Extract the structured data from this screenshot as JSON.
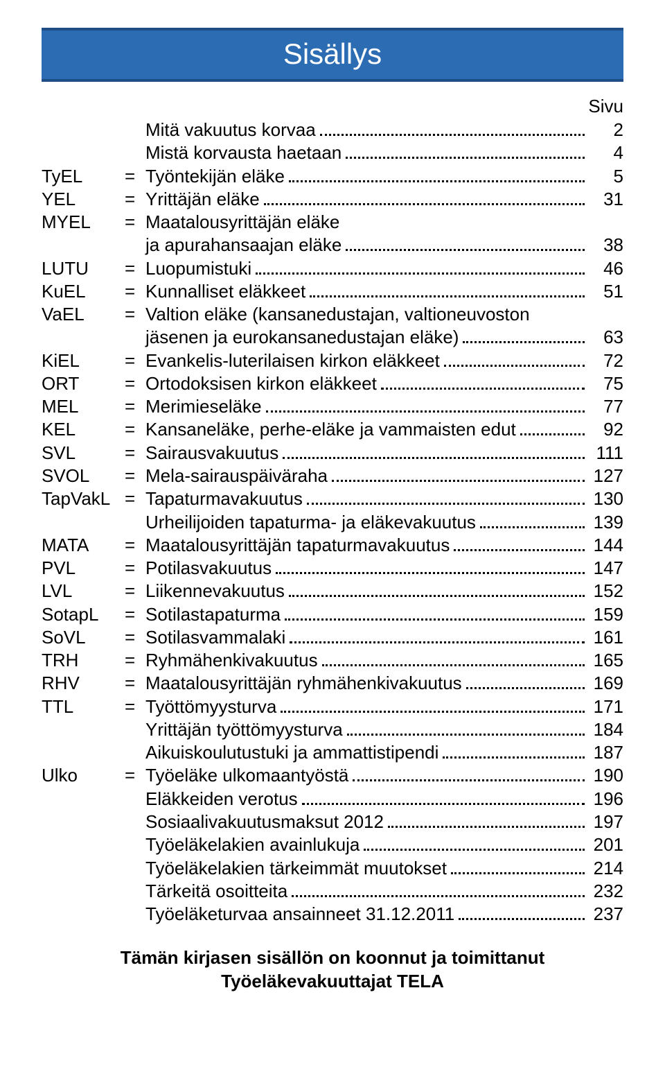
{
  "title": "Sisällys",
  "page_label": "Sivu",
  "colors": {
    "bar_bg": "#2b6cb3",
    "bar_border": "#1f4e87",
    "text": "#000000",
    "bg": "#ffffff"
  },
  "typography": {
    "title_fontsize": 42,
    "body_fontsize": 26,
    "footer_fontsize": 26
  },
  "entries": [
    {
      "abbr": "",
      "eq": "",
      "desc": "Mitä vakuutus korvaa",
      "page": "2"
    },
    {
      "abbr": "",
      "eq": "",
      "desc": "Mistä korvausta haetaan",
      "page": "4"
    },
    {
      "abbr": "TyEL",
      "eq": "=",
      "desc": "Työntekijän eläke",
      "page": "5"
    },
    {
      "abbr": "YEL",
      "eq": "=",
      "desc": "Yrittäjän eläke",
      "page": "31"
    },
    {
      "abbr": "MYEL",
      "eq": "=",
      "desc": "Maatalousyrittäjän eläke",
      "page": ""
    },
    {
      "abbr": "",
      "eq": "",
      "desc": "ja apurahansaajan eläke",
      "page": "38"
    },
    {
      "abbr": "LUTU",
      "eq": "=",
      "desc": "Luopumistuki",
      "page": "46"
    },
    {
      "abbr": "KuEL",
      "eq": "=",
      "desc": "Kunnalliset eläkkeet",
      "page": "51"
    },
    {
      "abbr": "VaEL",
      "eq": "=",
      "desc": "Valtion eläke (kansanedustajan, valtioneuvoston",
      "page": ""
    },
    {
      "abbr": "",
      "eq": "",
      "desc": "jäsenen ja eurokansanedustajan eläke)",
      "page": "63"
    },
    {
      "abbr": "KiEL",
      "eq": "=",
      "desc": "Evankelis-luterilaisen kirkon eläkkeet",
      "page": "72"
    },
    {
      "abbr": "ORT",
      "eq": "=",
      "desc": "Ortodoksisen kirkon eläkkeet",
      "page": "75"
    },
    {
      "abbr": "MEL",
      "eq": "=",
      "desc": "Merimieseläke",
      "page": "77"
    },
    {
      "abbr": "KEL",
      "eq": "=",
      "desc": "Kansaneläke, perhe-eläke ja vammaisten edut",
      "page": "92"
    },
    {
      "abbr": "SVL",
      "eq": "=",
      "desc": "Sairausvakuutus",
      "page": "111"
    },
    {
      "abbr": "SVOL",
      "eq": "=",
      "desc": "Mela-sairauspäiväraha",
      "page": "127"
    },
    {
      "abbr": "TapVakL",
      "eq": "=",
      "desc": "Tapaturmavakuutus",
      "page": "130"
    },
    {
      "abbr": "",
      "eq": "",
      "desc": "Urheilijoiden tapaturma- ja eläkevakuutus",
      "page": "139"
    },
    {
      "abbr": "MATA",
      "eq": "=",
      "desc": "Maatalousyrittäjän tapaturmavakuutus",
      "page": "144"
    },
    {
      "abbr": "PVL",
      "eq": "=",
      "desc": "Potilasvakuutus",
      "page": "147"
    },
    {
      "abbr": "LVL",
      "eq": "=",
      "desc": "Liikennevakuutus",
      "page": "152"
    },
    {
      "abbr": "SotapL",
      "eq": "=",
      "desc": "Sotilastapaturma",
      "page": "159"
    },
    {
      "abbr": "SoVL",
      "eq": "=",
      "desc": "Sotilasvammalaki",
      "page": "161"
    },
    {
      "abbr": "TRH",
      "eq": "=",
      "desc": "Ryhmähenkivakuutus",
      "page": "165"
    },
    {
      "abbr": "RHV",
      "eq": "=",
      "desc": "Maatalousyrittäjän ryhmähenkivakuutus",
      "page": "169"
    },
    {
      "abbr": "TTL",
      "eq": "=",
      "desc": "Työttömyysturva",
      "page": "171"
    },
    {
      "abbr": "",
      "eq": "",
      "desc": "Yrittäjän työttömyysturva",
      "page": "184"
    },
    {
      "abbr": "",
      "eq": "",
      "desc": "Aikuiskoulutustuki ja ammattistipendi",
      "page": "187"
    },
    {
      "abbr": "Ulko",
      "eq": "=",
      "desc": "Työeläke ulkomaantyöstä",
      "page": "190"
    },
    {
      "abbr": "",
      "eq": "",
      "desc": "Eläkkeiden verotus",
      "page": "196"
    },
    {
      "abbr": "",
      "eq": "",
      "desc": "Sosiaalivakuutusmaksut 2012",
      "page": "197"
    },
    {
      "abbr": "",
      "eq": "",
      "desc": "Työeläkelakien avainlukuja",
      "page": "201"
    },
    {
      "abbr": "",
      "eq": "",
      "desc": "Työeläkelakien tärkeimmät muutokset",
      "page": "214"
    },
    {
      "abbr": "",
      "eq": "",
      "desc": "Tärkeitä osoitteita",
      "page": "232"
    },
    {
      "abbr": "",
      "eq": "",
      "desc": "Työeläketurvaa ansainneet 31.12.2011",
      "page": "237"
    }
  ],
  "footer_line1": "Tämän kirjasen sisällön on koonnut ja toimittanut",
  "footer_line2": "Työeläkevakuuttajat TELA"
}
